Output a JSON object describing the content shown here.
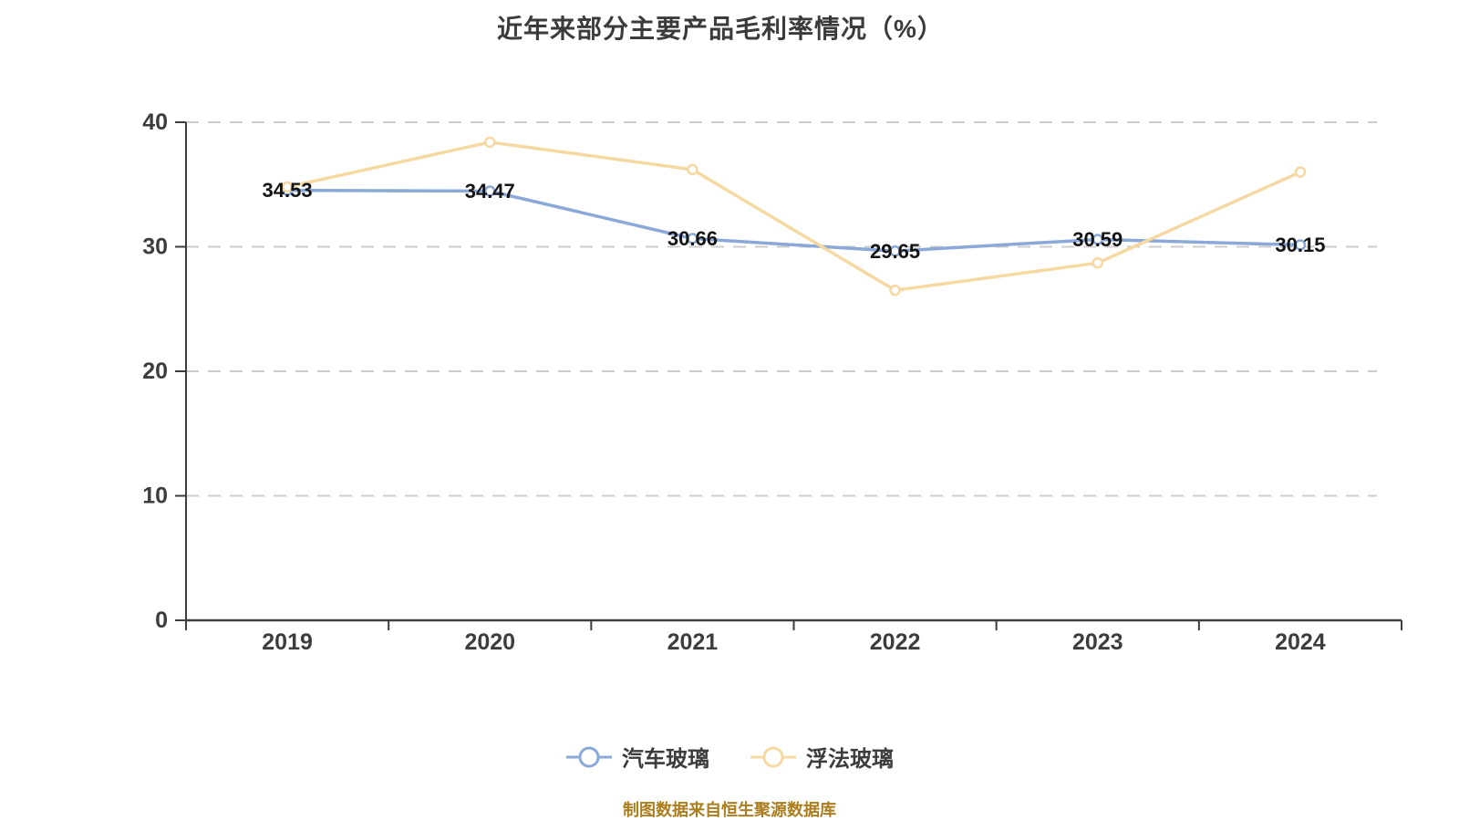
{
  "title": "近年来部分主要产品毛利率情况（%）",
  "footer": {
    "source_text": "制图数据来自恒生聚源数据库"
  },
  "colors": {
    "auto_glass_line": "#8aa8d8",
    "float_glass_line": "#f6d8a2",
    "marker_fill": "#ffffff",
    "grid": "#cccccc",
    "axis": "#3d3d3d",
    "axis_text": "#3d3d3d",
    "data_label": "#141414",
    "title_text": "#3b3b3b",
    "footer_text": "#aa7e1e"
  },
  "chart_data": {
    "type": "line",
    "title": "近年来部分主要产品毛利率情况（%）",
    "categories": [
      "2019",
      "2020",
      "2021",
      "2022",
      "2023",
      "2024"
    ],
    "series": [
      {
        "name": "汽车玻璃",
        "color": "#8aa8d8",
        "values": [
          34.53,
          34.47,
          30.66,
          29.65,
          30.59,
          30.15
        ],
        "data_labels": [
          "34.53",
          "34.47",
          "30.66",
          "29.65",
          "30.59",
          "30.15"
        ],
        "show_labels": true
      },
      {
        "name": "浮法玻璃",
        "color": "#f6d8a2",
        "values": [
          34.8,
          38.4,
          36.2,
          26.5,
          28.7,
          36.0
        ],
        "data_labels": [],
        "show_labels": false
      }
    ],
    "y_axis": {
      "min": 0,
      "max": 40,
      "ticks": [
        0,
        10,
        20,
        30,
        40
      ]
    },
    "x_axis_label": "",
    "y_axis_label": "",
    "grid": "horizontal dashed",
    "legend_position": "bottom"
  }
}
